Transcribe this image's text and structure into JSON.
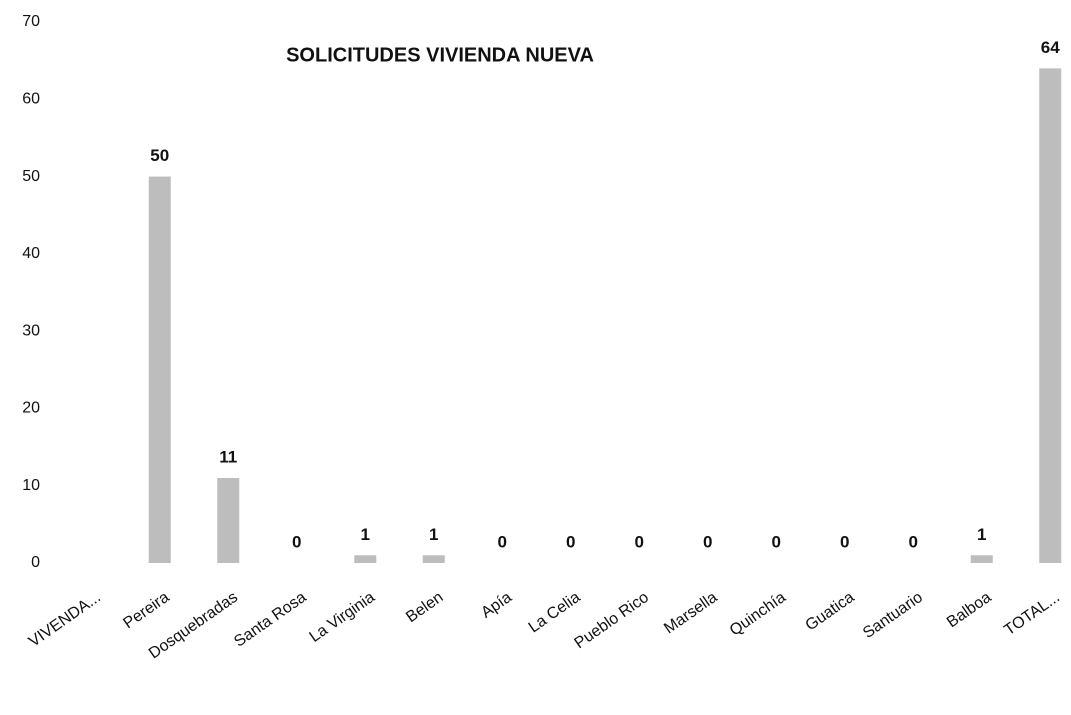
{
  "chart_data": {
    "type": "bar",
    "title": "SOLICITUDES  VIVIENDA NUEVA",
    "categories": [
      "VIVENDA...",
      "Pereira",
      "Dosquebradas",
      "Santa Rosa",
      "La Virginia",
      "Belen",
      "Apía",
      "La Celia",
      "Pueblo Rico",
      "Marsella",
      "Quinchía",
      "Guatica",
      "Santuario",
      "Balboa",
      "TOTAL..."
    ],
    "values": [
      null,
      50,
      11,
      0,
      1,
      1,
      0,
      0,
      0,
      0,
      0,
      0,
      0,
      1,
      64
    ],
    "color": "#bdbdbd",
    "ylim": [
      0,
      70
    ],
    "yticks": [
      0,
      10,
      20,
      30,
      40,
      50,
      60,
      70
    ],
    "grid": false
  }
}
